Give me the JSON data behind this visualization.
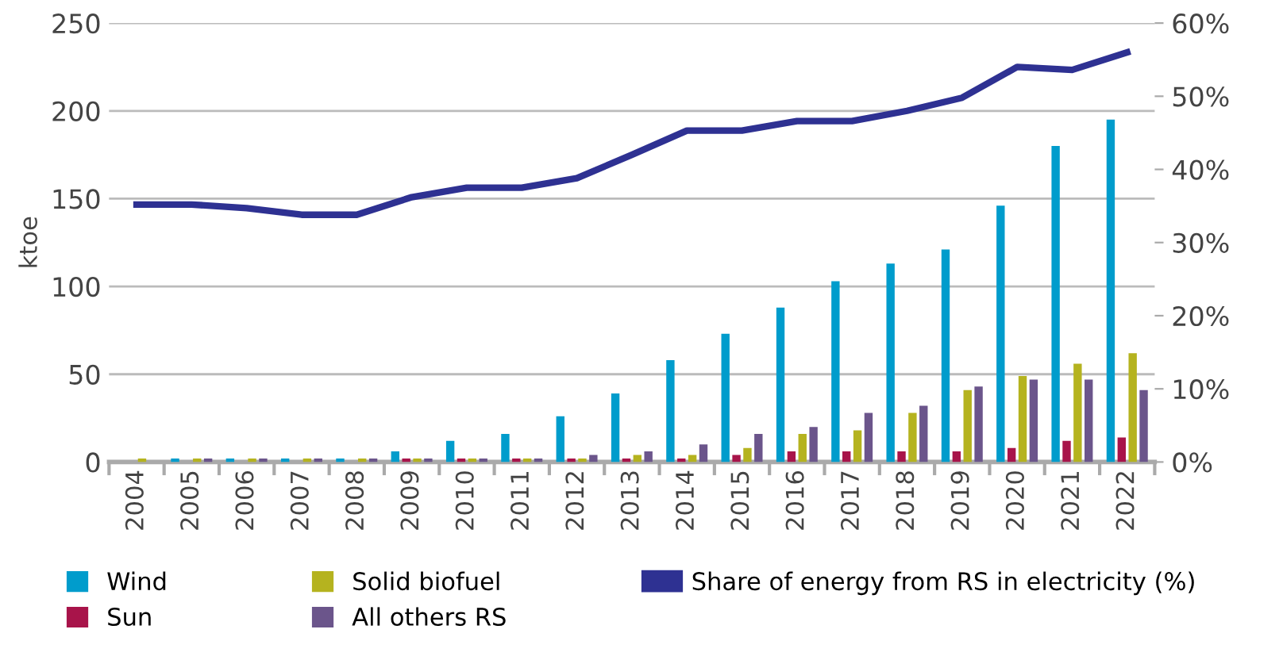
{
  "chart_data": {
    "type": "bar",
    "ylabel": "ktoe",
    "categories": [
      "2004",
      "2005",
      "2006",
      "2007",
      "2008",
      "2009",
      "2010",
      "2011",
      "2012",
      "2013",
      "2014",
      "2015",
      "2016",
      "2017",
      "2018",
      "2019",
      "2020",
      "2021",
      "2022"
    ],
    "series": [
      {
        "name": "Wind",
        "color": "#009ccc",
        "values": [
          0,
          2,
          2,
          2,
          2,
          6,
          12,
          16,
          26,
          39,
          58,
          73,
          88,
          103,
          113,
          121,
          146,
          180,
          195
        ]
      },
      {
        "name": "Sun",
        "color": "#a8144a",
        "values": [
          0,
          0,
          0,
          0,
          0,
          2,
          2,
          2,
          2,
          2,
          2,
          4,
          6,
          6,
          6,
          6,
          8,
          12,
          14
        ]
      },
      {
        "name": "Solid biofuel",
        "color": "#b5b31f",
        "values": [
          2,
          2,
          2,
          2,
          2,
          2,
          2,
          2,
          2,
          4,
          4,
          8,
          16,
          18,
          28,
          41,
          49,
          56,
          62
        ]
      },
      {
        "name": "All others RS",
        "color": "#6b558b",
        "values": [
          0,
          2,
          2,
          2,
          2,
          2,
          2,
          2,
          4,
          6,
          10,
          16,
          20,
          28,
          32,
          43,
          47,
          47,
          41
        ]
      },
      {
        "name": "Share of energy from RS in electricity (%)",
        "color": "#2e3192",
        "type": "line",
        "axis": "y2",
        "values": [
          35.2,
          35.2,
          34.7,
          33.8,
          33.8,
          36.2,
          37.5,
          37.5,
          38.8,
          42,
          45.3,
          45.3,
          46.6,
          46.6,
          48,
          49.8,
          54,
          53.6,
          56
        ]
      }
    ],
    "ylim": [
      0,
      250
    ],
    "yticks": [
      0,
      50,
      100,
      150,
      200,
      250
    ],
    "y2lim": [
      0,
      60
    ],
    "y2ticks": [
      {
        "value": 0,
        "label": "0%"
      },
      {
        "value": 10,
        "label": "10%"
      },
      {
        "value": 20,
        "label": "20%"
      },
      {
        "value": 30,
        "label": "30%"
      },
      {
        "value": 40,
        "label": "40%"
      },
      {
        "value": 50,
        "label": "50%"
      },
      {
        "value": 60,
        "label": "60%"
      }
    ],
    "grid": "y",
    "legend": "bottom",
    "line_style": "solid",
    "marker": "none"
  }
}
